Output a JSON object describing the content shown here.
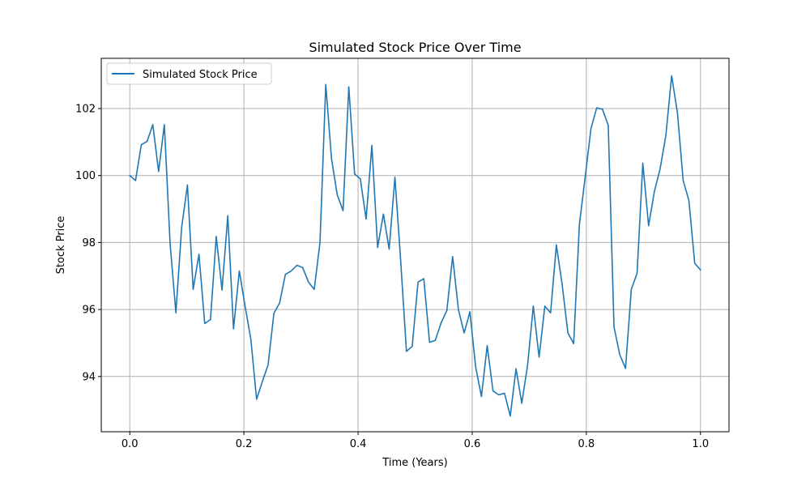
{
  "chart_data": {
    "type": "line",
    "title": "Simulated Stock Price Over Time",
    "xlabel": "Time (Years)",
    "ylabel": "Stock Price",
    "xlim": [
      -0.05,
      1.05
    ],
    "ylim": [
      92.35,
      103.5
    ],
    "xticks": [
      0.0,
      0.2,
      0.4,
      0.6,
      0.8,
      1.0
    ],
    "xtick_labels": [
      "0.0",
      "0.2",
      "0.4",
      "0.6",
      "0.8",
      "1.0"
    ],
    "yticks": [
      94,
      96,
      98,
      100,
      102
    ],
    "ytick_labels": [
      "94",
      "96",
      "98",
      "100",
      "102"
    ],
    "grid": true,
    "legend_position": "upper-left",
    "colors": {
      "series": "#1f77b4",
      "grid": "#b0b0b0",
      "axes": "#000000"
    },
    "series": [
      {
        "name": "Simulated Stock Price",
        "x": [
          0.0,
          0.0101,
          0.0202,
          0.0303,
          0.0404,
          0.0505,
          0.0606,
          0.0707,
          0.0808,
          0.0909,
          0.101,
          0.1111,
          0.1212,
          0.1313,
          0.1414,
          0.1515,
          0.1616,
          0.1717,
          0.1818,
          0.1919,
          0.202,
          0.2121,
          0.2222,
          0.2323,
          0.2424,
          0.2525,
          0.2626,
          0.2727,
          0.2828,
          0.2929,
          0.303,
          0.3131,
          0.3232,
          0.3333,
          0.3434,
          0.3535,
          0.3636,
          0.3737,
          0.3838,
          0.3939,
          0.404,
          0.4141,
          0.4242,
          0.4343,
          0.4444,
          0.4545,
          0.4646,
          0.4747,
          0.4848,
          0.4949,
          0.5051,
          0.5152,
          0.5253,
          0.5354,
          0.5455,
          0.5556,
          0.5657,
          0.5758,
          0.5859,
          0.596,
          0.6061,
          0.6162,
          0.6263,
          0.6364,
          0.6465,
          0.6566,
          0.6667,
          0.6768,
          0.6869,
          0.697,
          0.7071,
          0.7172,
          0.7273,
          0.7374,
          0.7475,
          0.7576,
          0.7677,
          0.7778,
          0.7879,
          0.798,
          0.8081,
          0.8182,
          0.8283,
          0.8384,
          0.8485,
          0.8586,
          0.8687,
          0.8788,
          0.8889,
          0.899,
          0.9091,
          0.9192,
          0.9293,
          0.9394,
          0.9495,
          0.9596,
          0.9697,
          0.9798,
          0.9899,
          1.0
        ],
        "values": [
          100.0,
          99.85,
          100.92,
          101.02,
          101.52,
          100.12,
          101.52,
          97.95,
          95.9,
          98.45,
          99.72,
          96.6,
          97.65,
          95.58,
          95.7,
          98.18,
          96.58,
          98.8,
          95.42,
          97.15,
          96.1,
          95.12,
          93.32,
          93.85,
          94.35,
          95.88,
          96.2,
          97.05,
          97.15,
          97.32,
          97.25,
          96.82,
          96.6,
          98.0,
          102.72,
          100.5,
          99.42,
          98.95,
          102.65,
          100.05,
          99.9,
          98.7,
          100.9,
          97.85,
          98.85,
          97.8,
          99.95,
          97.45,
          94.75,
          94.9,
          96.82,
          96.92,
          95.02,
          95.08,
          95.6,
          95.97,
          97.58,
          96.0,
          95.3,
          95.93,
          94.28,
          93.4,
          94.92,
          93.57,
          93.45,
          93.5,
          92.82,
          94.23,
          93.2,
          94.33,
          96.1,
          94.58,
          96.1,
          95.9,
          97.93,
          96.75,
          95.3,
          94.98,
          98.55,
          99.95,
          101.4,
          102.02,
          101.98,
          101.5,
          95.48,
          94.65,
          94.24,
          96.6,
          97.08,
          100.37,
          98.5,
          99.52,
          100.2,
          101.2,
          102.98,
          101.88,
          99.85,
          99.25,
          97.38,
          97.18
        ]
      }
    ]
  }
}
